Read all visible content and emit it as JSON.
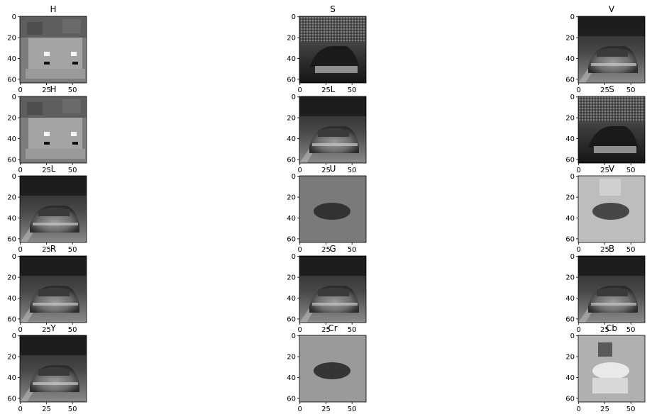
{
  "figure": {
    "rows": [
      [
        "H",
        "S",
        "V"
      ],
      [
        "H",
        "L",
        "S"
      ],
      [
        "L",
        "U",
        "V"
      ],
      [
        "R",
        "G",
        "B"
      ],
      [
        "Y",
        "Cr",
        "Cb"
      ]
    ],
    "image_kind": [
      "hsv_h",
      "hsv_s",
      "gray",
      "hsv_h",
      "gray",
      "hsv_s",
      "gray",
      "chroma_u",
      "chroma_v",
      "gray",
      "gray",
      "gray",
      "gray",
      "chroma_cr",
      "chroma_cb"
    ],
    "y_ticks": [
      "0",
      "20",
      "40",
      "60"
    ],
    "x_ticks": [
      "0",
      "25",
      "50"
    ],
    "image_colormap": "gray"
  }
}
